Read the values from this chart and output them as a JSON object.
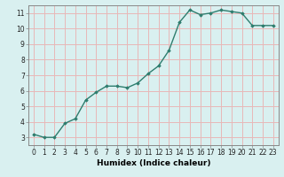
{
  "x": [
    0,
    1,
    2,
    3,
    4,
    5,
    6,
    7,
    8,
    9,
    10,
    11,
    12,
    13,
    14,
    15,
    16,
    17,
    18,
    19,
    20,
    21,
    22,
    23
  ],
  "y": [
    3.2,
    3.0,
    3.0,
    3.9,
    4.2,
    5.4,
    5.9,
    6.3,
    6.3,
    6.2,
    6.5,
    7.1,
    7.6,
    8.6,
    10.4,
    11.2,
    10.9,
    11.0,
    11.2,
    11.1,
    11.0,
    10.2,
    10.2,
    10.2
  ],
  "line_color": "#2e7d6e",
  "marker": "D",
  "marker_size": 1.8,
  "bg_color": "#d9f0f0",
  "grid_color": "#e8b8b8",
  "xlabel": "Humidex (Indice chaleur)",
  "xlim": [
    -0.5,
    23.5
  ],
  "ylim": [
    2.5,
    11.5
  ],
  "yticks": [
    3,
    4,
    5,
    6,
    7,
    8,
    9,
    10,
    11
  ],
  "xticks": [
    0,
    1,
    2,
    3,
    4,
    5,
    6,
    7,
    8,
    9,
    10,
    11,
    12,
    13,
    14,
    15,
    16,
    17,
    18,
    19,
    20,
    21,
    22,
    23
  ],
  "tick_fontsize": 5.5,
  "label_fontsize": 6.5,
  "line_width": 1.0,
  "spine_color": "#888888"
}
